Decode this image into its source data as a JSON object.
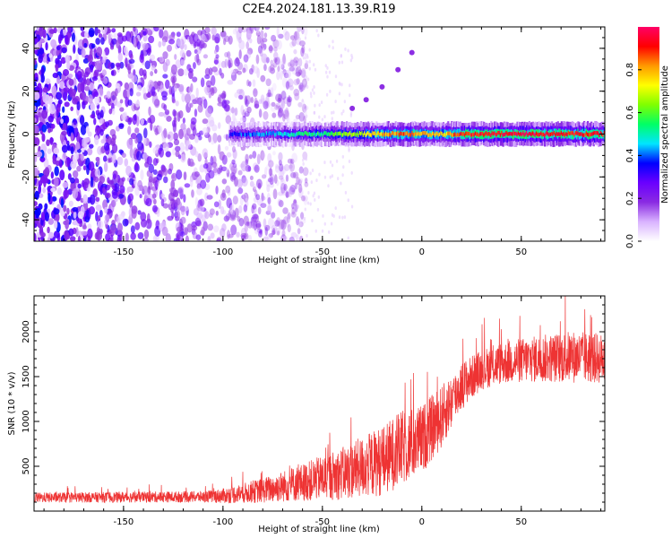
{
  "title": "C2E4.2024.181.13.39.R19",
  "chart_data": [
    {
      "type": "heatmap",
      "name": "spectrogram",
      "xlabel": "Height of straight line (km)",
      "ylabel": "Frequency (Hz)",
      "xlim": [
        -195,
        92
      ],
      "ylim": [
        -50,
        50
      ],
      "xticks": [
        -150,
        -100,
        -50,
        0,
        50
      ],
      "yticks": [
        -40,
        -20,
        0,
        20,
        40
      ],
      "colorbar": {
        "label": "Normalized spectral amplitude",
        "range": [
          0.0,
          1.0
        ],
        "ticks": [
          0.0,
          0.2,
          0.4,
          0.6,
          0.8
        ],
        "colormap": [
          "#ffffff",
          "#d9b3ff",
          "#8a2be2",
          "#6a00ff",
          "#0000ff",
          "#00e5ff",
          "#00ff66",
          "#7fff00",
          "#ffff00",
          "#ff9900",
          "#ff0000",
          "#ff0066"
        ]
      },
      "noise_region_x": [
        -195,
        -58
      ],
      "signal_band": {
        "x_range": [
          -97,
          92
        ],
        "center_frequency_hz": 0,
        "amplitude_profile": [
          {
            "x": -97,
            "amp": 0.35
          },
          {
            "x": -75,
            "amp": 0.45
          },
          {
            "x": -50,
            "amp": 0.55
          },
          {
            "x": -30,
            "amp": 0.7
          },
          {
            "x": -10,
            "amp": 0.85
          },
          {
            "x": 10,
            "amp": 0.75
          },
          {
            "x": 20,
            "amp": 0.9
          },
          {
            "x": 50,
            "amp": 0.95
          },
          {
            "x": 92,
            "amp": 0.9
          }
        ]
      },
      "harmonic_trace": {
        "points": [
          [
            -35,
            12
          ],
          [
            -28,
            16
          ],
          [
            -20,
            22
          ],
          [
            -12,
            30
          ],
          [
            -5,
            38
          ]
        ]
      }
    },
    {
      "type": "line",
      "name": "snr",
      "xlabel": "Height of straight line (km)",
      "ylabel": "SNR (10 * v/v)",
      "xlim": [
        -195,
        92
      ],
      "ylim": [
        0,
        2400
      ],
      "xticks": [
        -150,
        -100,
        -50,
        0,
        50
      ],
      "yticks": [
        500,
        1000,
        1500,
        2000
      ],
      "color": "#ee3333",
      "envelope": [
        {
          "x": -195,
          "base": 150,
          "spread": 80
        },
        {
          "x": -110,
          "base": 160,
          "spread": 90
        },
        {
          "x": -100,
          "base": 170,
          "spread": 120
        },
        {
          "x": -80,
          "base": 230,
          "spread": 200
        },
        {
          "x": -60,
          "base": 320,
          "spread": 300
        },
        {
          "x": -40,
          "base": 420,
          "spread": 420
        },
        {
          "x": -20,
          "base": 560,
          "spread": 560
        },
        {
          "x": -10,
          "base": 700,
          "spread": 600
        },
        {
          "x": 0,
          "base": 800,
          "spread": 550
        },
        {
          "x": 10,
          "base": 1050,
          "spread": 500
        },
        {
          "x": 20,
          "base": 1400,
          "spread": 380
        },
        {
          "x": 30,
          "base": 1580,
          "spread": 320
        },
        {
          "x": 40,
          "base": 1650,
          "spread": 340
        },
        {
          "x": 50,
          "base": 1680,
          "spread": 360
        },
        {
          "x": 60,
          "base": 1700,
          "spread": 380
        },
        {
          "x": 75,
          "base": 1720,
          "spread": 420
        },
        {
          "x": 92,
          "base": 1700,
          "spread": 400
        }
      ]
    }
  ]
}
